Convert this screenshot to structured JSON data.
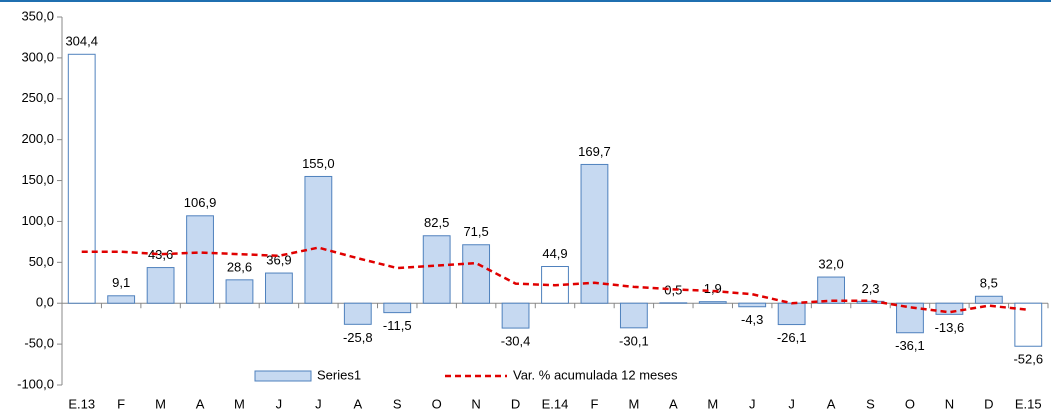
{
  "chart_data": {
    "type": "bar",
    "categories": [
      "E.13",
      "F",
      "M",
      "A",
      "M",
      "J",
      "J",
      "A",
      "S",
      "O",
      "N",
      "D",
      "E.14",
      "F",
      "M",
      "A",
      "M",
      "J",
      "J",
      "A",
      "S",
      "O",
      "N",
      "D",
      "E.15"
    ],
    "series": [
      {
        "name": "Series1",
        "type": "bar",
        "color": "#c6d9f1",
        "edge": "#4f81bd",
        "bar_colors": [
          "#ffffff",
          "#c6d9f1",
          "#c6d9f1",
          "#c6d9f1",
          "#c6d9f1",
          "#c6d9f1",
          "#c6d9f1",
          "#c6d9f1",
          "#c6d9f1",
          "#c6d9f1",
          "#c6d9f1",
          "#c6d9f1",
          "#ffffff",
          "#c6d9f1",
          "#c6d9f1",
          "#c6d9f1",
          "#c6d9f1",
          "#c6d9f1",
          "#c6d9f1",
          "#c6d9f1",
          "#c6d9f1",
          "#c6d9f1",
          "#c6d9f1",
          "#c6d9f1",
          "#ffffff"
        ],
        "values": [
          304.4,
          9.1,
          43.6,
          106.9,
          28.6,
          36.9,
          155.0,
          -25.8,
          -11.5,
          82.5,
          71.5,
          -30.4,
          44.9,
          169.7,
          -30.1,
          0.5,
          1.9,
          -4.3,
          -26.1,
          32.0,
          2.3,
          -36.1,
          -13.6,
          8.5,
          -52.6
        ],
        "value_labels": [
          "304,4",
          "9,1",
          "43,6",
          "106,9",
          "28,6",
          "36,9",
          "155,0",
          "-25,8",
          "-11,5",
          "82,5",
          "71,5",
          "-30,4",
          "44,9",
          "169,7",
          "-30,1",
          "0,5",
          "1,9",
          "-4,3",
          "-26,1",
          "32,0",
          "2,3",
          "-36,1",
          "-13,6",
          "8,5",
          "-52,6"
        ]
      },
      {
        "name": "Var. % acumulada 12 meses",
        "type": "line",
        "color": "#e00000",
        "dashed": true,
        "values": [
          63,
          63,
          60,
          62,
          60,
          58,
          68,
          55,
          43,
          46,
          49,
          24,
          22,
          25,
          20,
          17,
          15,
          11,
          0,
          3,
          3,
          -5,
          -11,
          -3,
          -8
        ]
      }
    ],
    "ylim": [
      -100,
      350
    ],
    "yticks": [
      {
        "value": -100,
        "label": "-100,0"
      },
      {
        "value": -50,
        "label": "-50,0"
      },
      {
        "value": 0,
        "label": "0,0"
      },
      {
        "value": 50,
        "label": "50,0"
      },
      {
        "value": 100,
        "label": "100,0"
      },
      {
        "value": 150,
        "label": "150,0"
      },
      {
        "value": 200,
        "label": "200,0"
      },
      {
        "value": 250,
        "label": "250,0"
      },
      {
        "value": 300,
        "label": "300,0"
      },
      {
        "value": 350,
        "label": "350,0"
      }
    ]
  }
}
